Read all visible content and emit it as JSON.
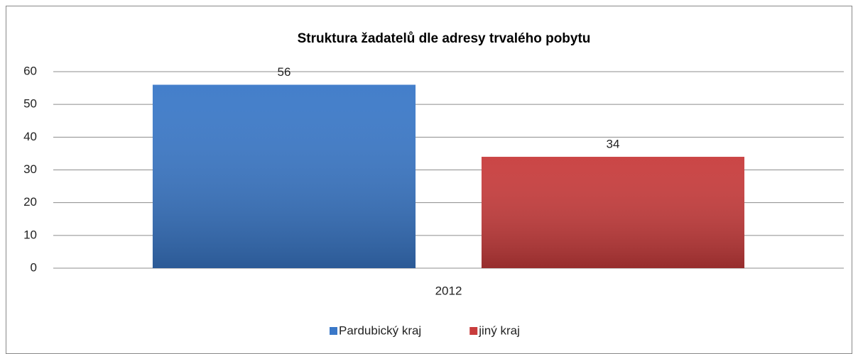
{
  "chart_data": {
    "type": "bar",
    "title": "Struktura žadatelů dle adresy trvalého pobytu",
    "categories": [
      "2012"
    ],
    "series": [
      {
        "name": "Pardubický kraj",
        "color": "#3a78c8",
        "values": [
          56
        ]
      },
      {
        "name": "jiný kraj",
        "color": "#c83c3c",
        "values": [
          34
        ]
      }
    ],
    "ylim": [
      0,
      60
    ],
    "yticks": [
      0,
      10,
      20,
      30,
      40,
      50,
      60
    ],
    "grid": true,
    "legend": "bottom"
  }
}
